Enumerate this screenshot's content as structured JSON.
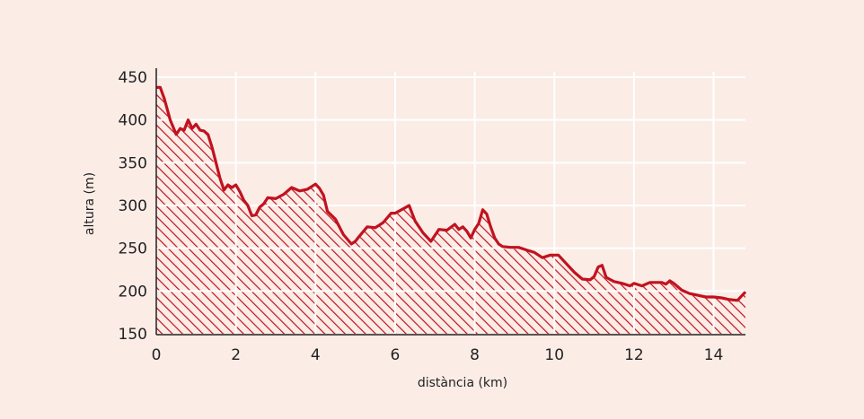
{
  "chart_data": {
    "type": "area",
    "title": "",
    "xlabel": "distància (km)",
    "ylabel": "altura (m)",
    "xlim": [
      0,
      14.8
    ],
    "ylim": [
      150,
      450
    ],
    "xticks": [
      0,
      2,
      4,
      6,
      8,
      10,
      12,
      14
    ],
    "yticks": [
      150,
      200,
      250,
      300,
      350,
      400,
      450
    ],
    "grid": true,
    "legend": "none",
    "fill_pattern": "diagonal-hatch",
    "colors": {
      "line": "#c1121f",
      "hatch": "#c1121f",
      "grid": "#ffffff",
      "background": "#fbece6",
      "axis": "#222222"
    },
    "series": [
      {
        "x": [
          0,
          0.1,
          0.2,
          0.35,
          0.5,
          0.6,
          0.7,
          0.8,
          0.9,
          1.0,
          1.1,
          1.2,
          1.3,
          1.4,
          1.5,
          1.6,
          1.7,
          1.8,
          1.9,
          2.0,
          2.1,
          2.2,
          2.3,
          2.4,
          2.5,
          2.6,
          2.7,
          2.8,
          3.0,
          3.2,
          3.4,
          3.6,
          3.8,
          4.0,
          4.1,
          4.2,
          4.3,
          4.5,
          4.7,
          4.9,
          5.0,
          5.1,
          5.3,
          5.5,
          5.7,
          5.9,
          6.0,
          6.2,
          6.35,
          6.5,
          6.7,
          6.9,
          7.1,
          7.3,
          7.5,
          7.6,
          7.7,
          7.8,
          7.9,
          8.0,
          8.1,
          8.2,
          8.3,
          8.4,
          8.5,
          8.6,
          8.7,
          8.9,
          9.1,
          9.3,
          9.5,
          9.7,
          9.9,
          10.1,
          10.3,
          10.5,
          10.7,
          10.9,
          11.0,
          11.1,
          11.2,
          11.3,
          11.5,
          11.7,
          11.9,
          12.0,
          12.2,
          12.4,
          12.6,
          12.7,
          12.8,
          12.9,
          13.0,
          13.2,
          13.4,
          13.6,
          13.8,
          14.0,
          14.2,
          14.4,
          14.6,
          14.8
        ],
        "y": [
          438,
          438,
          425,
          400,
          383,
          390,
          388,
          400,
          390,
          395,
          388,
          387,
          383,
          368,
          350,
          332,
          318,
          324,
          321,
          324,
          316,
          306,
          300,
          288,
          289,
          298,
          302,
          309,
          308,
          313,
          321,
          317,
          319,
          325,
          320,
          312,
          293,
          284,
          266,
          255,
          258,
          264,
          275,
          274,
          280,
          291,
          291,
          296,
          300,
          282,
          268,
          258,
          272,
          271,
          278,
          272,
          275,
          270,
          262,
          272,
          279,
          295,
          290,
          275,
          262,
          255,
          252,
          251,
          251,
          248,
          245,
          239,
          242,
          242,
          232,
          222,
          214,
          213,
          217,
          228,
          230,
          216,
          211,
          209,
          206,
          209,
          206,
          210,
          210,
          210,
          208,
          212,
          209,
          201,
          197,
          195,
          193,
          193,
          192,
          190,
          189,
          199
        ]
      }
    ]
  }
}
